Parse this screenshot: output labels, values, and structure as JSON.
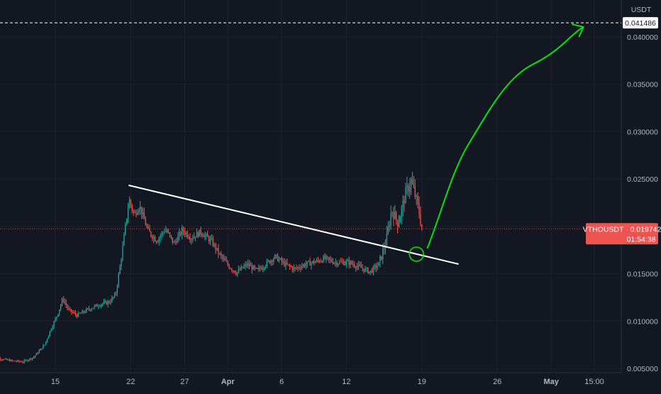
{
  "chart_data": {
    "type": "candlestick",
    "currency_label": "USDT",
    "symbol": "VTHOUSDT",
    "last_price": "0.019742",
    "countdown": "01:54:38",
    "target_price": "0.041486",
    "y_ticks": [
      "0.040000",
      "0.035000",
      "0.030000",
      "0.025000",
      "0.020000",
      "0.015000",
      "0.010000",
      "0.005000"
    ],
    "y_tick_values": [
      0.04,
      0.035,
      0.03,
      0.025,
      0.02,
      0.015,
      0.01,
      0.005
    ],
    "x_ticks": [
      {
        "label": "15",
        "bold": false,
        "day": 0
      },
      {
        "label": "22",
        "bold": false,
        "day": 7
      },
      {
        "label": "27",
        "bold": false,
        "day": 12
      },
      {
        "label": "Apr",
        "bold": true,
        "day": 16
      },
      {
        "label": "6",
        "bold": false,
        "day": 21
      },
      {
        "label": "12",
        "bold": false,
        "day": 27
      },
      {
        "label": "19",
        "bold": false,
        "day": 34
      },
      {
        "label": "26",
        "bold": false,
        "day": 41
      },
      {
        "label": "May",
        "bold": true,
        "day": 46
      },
      {
        "label": "15:00",
        "bold": false,
        "day": 50
      }
    ],
    "price_path": [
      [
        -6,
        0.0063
      ],
      [
        -5,
        0.006
      ],
      [
        -4,
        0.0058
      ],
      [
        -3,
        0.0057
      ],
      [
        -2,
        0.0062
      ],
      [
        -1,
        0.0075
      ],
      [
        -0.4,
        0.0092
      ],
      [
        0.2,
        0.0107
      ],
      [
        0.7,
        0.0124
      ],
      [
        1.2,
        0.0112
      ],
      [
        2.0,
        0.0106
      ],
      [
        3.0,
        0.0112
      ],
      [
        4.2,
        0.0118
      ],
      [
        5.0,
        0.012
      ],
      [
        5.6,
        0.0128
      ],
      [
        6.1,
        0.0165
      ],
      [
        6.5,
        0.02
      ],
      [
        6.85,
        0.0228
      ],
      [
        7.3,
        0.0212
      ],
      [
        7.8,
        0.0222
      ],
      [
        8.6,
        0.0195
      ],
      [
        9.4,
        0.0185
      ],
      [
        10.2,
        0.0197
      ],
      [
        11.0,
        0.0182
      ],
      [
        11.8,
        0.0196
      ],
      [
        12.6,
        0.0188
      ],
      [
        13.5,
        0.0194
      ],
      [
        14.5,
        0.0184
      ],
      [
        15.3,
        0.0169
      ],
      [
        16.1,
        0.0158
      ],
      [
        16.8,
        0.0151
      ],
      [
        17.8,
        0.016
      ],
      [
        18.7,
        0.0153
      ],
      [
        19.6,
        0.0161
      ],
      [
        20.4,
        0.0168
      ],
      [
        21.3,
        0.016
      ],
      [
        22.2,
        0.0155
      ],
      [
        23.2,
        0.016
      ],
      [
        24.2,
        0.0163
      ],
      [
        25.0,
        0.0166
      ],
      [
        26.0,
        0.0162
      ],
      [
        27.2,
        0.0162
      ],
      [
        28.2,
        0.0157
      ],
      [
        29.2,
        0.0152
      ],
      [
        30.0,
        0.016
      ],
      [
        30.7,
        0.0185
      ],
      [
        31.2,
        0.0218
      ],
      [
        31.8,
        0.0203
      ],
      [
        32.5,
        0.0235
      ],
      [
        33.0,
        0.0248
      ],
      [
        33.4,
        0.0232
      ],
      [
        33.8,
        0.0212
      ],
      [
        34.0,
        0.0197
      ]
    ]
  }
}
